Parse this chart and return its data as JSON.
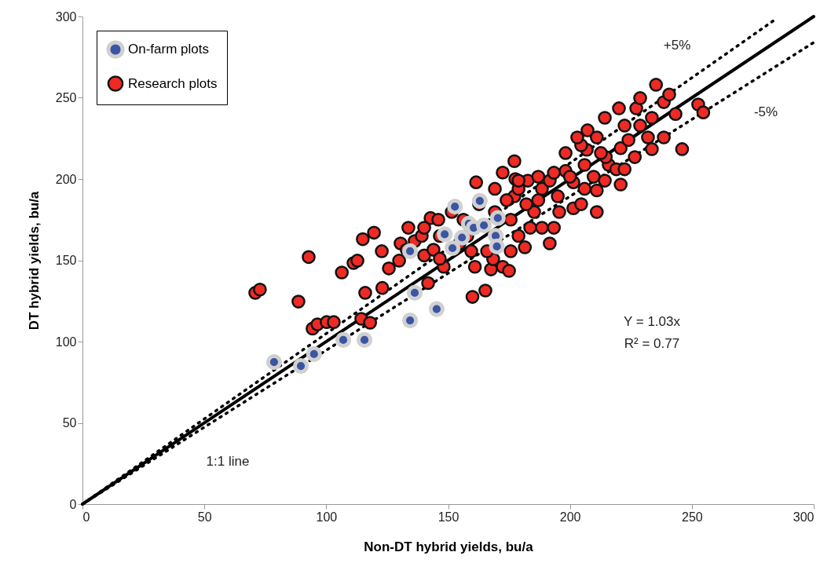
{
  "chart_data": {
    "type": "scatter",
    "xlabel": "Non-DT hybrid yields, bu/a",
    "ylabel": "DT hybrid yields, bu/a",
    "xlim": [
      0,
      300
    ],
    "ylim": [
      0,
      300
    ],
    "xticks": [
      0,
      50,
      100,
      150,
      200,
      250,
      300
    ],
    "yticks": [
      0,
      50,
      100,
      150,
      200,
      250,
      300
    ],
    "grid": false,
    "legend": "top left",
    "series": [
      {
        "type": "line",
        "color": "#000000",
        "line_style": "solid",
        "x": [
          0,
          300
        ],
        "values": [
          0,
          300
        ]
      },
      {
        "type": "line",
        "color": "#000000",
        "line_style": "dotted",
        "x": [
          0,
          285
        ],
        "values": [
          0,
          299
        ]
      },
      {
        "type": "line",
        "color": "#000000",
        "line_style": "dotted",
        "x": [
          0,
          300
        ],
        "values": [
          0,
          284
        ]
      },
      {
        "name": "On-farm plots",
        "color": "#3b55a5",
        "marker": "circle",
        "x": [
          78.6,
          89.6,
          95,
          107,
          115.7,
          134.4,
          134.4,
          136.3,
          145.3,
          152.8,
          148.6,
          151.8,
          155.7,
          158.5,
          163,
          160.5,
          169.5,
          170.4,
          170,
          164.7
        ],
        "values": [
          87.4,
          85,
          92.3,
          101,
          101,
          155.6,
          113,
          130,
          120,
          183,
          166,
          157.5,
          164,
          172.5,
          186.5,
          170,
          165,
          176,
          158.5,
          171.5
        ]
      },
      {
        "name": "Research plots",
        "color": "#ee2a24",
        "marker": "circle",
        "x": [
          70.9,
          72.8,
          88.6,
          92.8,
          94.4,
          96.4,
          100.2,
          103.1,
          106.4,
          111.2,
          112.8,
          115,
          119.6,
          116,
          114.4,
          118,
          123,
          125.7,
          122.8,
          129.9,
          130.5,
          133,
          133.7,
          136.3,
          139.2,
          142.8,
          141.8,
          140.2,
          144,
          146.6,
          148.2,
          151.5,
          156.3,
          161.5,
          161,
          160,
          165.3,
          167.6,
          168.5,
          172.4,
          175,
          175.7,
          177.2,
          177.2,
          177.6,
          169.2,
          174,
          178.9,
          181.5,
          183.7,
          185.3,
          187,
          188.5,
          182.7,
          191.7,
          195,
          195.6,
          193.4,
          188.5,
          201.4,
          198.2,
          201.4,
          206,
          204.6,
          206,
          206.9,
          207.2,
          211,
          214.3,
          215.9,
          219,
          211,
          211,
          214.7,
          220.8,
          224,
          222.4,
          220.1,
          227.2,
          228.8,
          232,
          233.6,
          235.3,
          238.5,
          240.7,
          243.3,
          238.5,
          233.6,
          226.6,
          222.4,
          246,
          252.6,
          254.7,
          228.8,
          214.3,
          204.6,
          198.2,
          175.7,
          166,
          159.5,
          157.9,
          154.7,
          146.6,
          146,
          140.2,
          162.7,
          169.2,
          172.4,
          178.9,
          182.1,
          191.7,
          178.9,
          187,
          193.4,
          200,
          209.7,
          212.7,
          220.8,
          203
        ],
        "values": [
          130,
          132,
          124.6,
          152,
          108,
          110.6,
          112,
          112,
          142.5,
          148.3,
          149.8,
          163,
          167,
          130,
          114,
          111.6,
          133,
          145,
          155.6,
          149.8,
          160.4,
          156.5,
          170,
          161.8,
          165,
          176,
          136,
          153,
          156.5,
          165,
          146,
          179.7,
          175,
          198,
          146,
          127.5,
          131.4,
          144.4,
          150.7,
          146,
          143.5,
          175,
          189.4,
          211,
          200,
          179.7,
          187,
          165,
          158,
          170,
          179.7,
          187,
          194,
          199,
          199,
          189.4,
          179.7,
          170,
          170,
          182,
          205,
          198,
          194,
          184.5,
          208.7,
          218,
          230,
          225.6,
          199,
          208.7,
          206,
          179.7,
          193,
          213.5,
          219,
          224,
          232.9,
          243.5,
          243.5,
          232.9,
          225.6,
          237.7,
          258,
          247.3,
          252,
          240,
          225.6,
          218.4,
          213.5,
          206,
          218.4,
          245.9,
          241,
          249.8,
          237.7,
          220.8,
          216,
          155.6,
          155.6,
          155.6,
          165,
          160.4,
          151,
          175,
          170,
          184.5,
          194,
          204,
          194,
          184.5,
          160.4,
          199,
          201.4,
          203.9,
          201.4,
          201.4,
          216,
          196.6,
          225.6
        ]
      }
    ],
    "annotations": [
      "+5%",
      "-5%",
      "Y = 1.03x",
      "R² = 0.77",
      "1:1 line"
    ]
  }
}
